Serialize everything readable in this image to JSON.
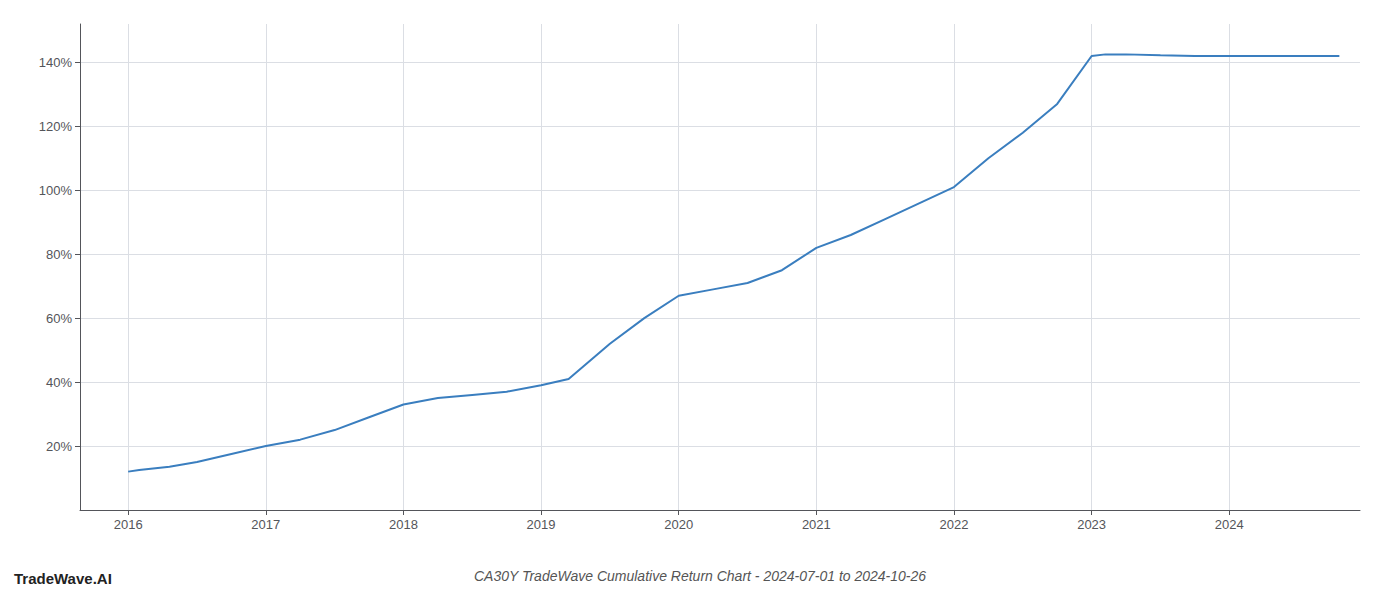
{
  "chart_data": {
    "type": "line",
    "title": "CA30Y TradeWave Cumulative Return Chart - 2024-07-01 to 2024-10-26",
    "annotations": [
      "TradeWave.AI"
    ],
    "x": [
      2016.0,
      2016.08,
      2016.3,
      2016.5,
      2016.75,
      2017.0,
      2017.25,
      2017.5,
      2017.75,
      2018.0,
      2018.25,
      2018.5,
      2018.75,
      2019.0,
      2019.2,
      2019.5,
      2019.75,
      2020.0,
      2020.25,
      2020.5,
      2020.75,
      2021.0,
      2021.25,
      2021.5,
      2021.75,
      2022.0,
      2022.25,
      2022.5,
      2022.75,
      2023.0,
      2023.1,
      2023.25,
      2023.5,
      2023.75,
      2024.0,
      2024.3,
      2024.8
    ],
    "values": [
      12,
      12.5,
      13.5,
      15,
      17.5,
      20,
      22,
      25,
      29,
      33,
      35,
      36,
      37,
      39,
      41,
      52,
      60,
      67,
      69,
      71,
      75,
      82,
      86,
      91,
      96,
      101,
      110,
      118,
      127,
      142,
      142.5,
      142.5,
      142.2,
      142.0,
      142.0,
      142.0,
      142.0
    ],
    "color": "#3a7ebf",
    "xlim": [
      2015.65,
      2024.95
    ],
    "ylim": [
      0,
      152
    ],
    "xticks": [
      2016,
      2017,
      2018,
      2019,
      2020,
      2021,
      2022,
      2023,
      2024
    ],
    "yticks": [
      {
        "value": 20,
        "label": "20%"
      },
      {
        "value": 40,
        "label": "40%"
      },
      {
        "value": 60,
        "label": "60%"
      },
      {
        "value": 80,
        "label": "80%"
      },
      {
        "value": 100,
        "label": "100%"
      },
      {
        "value": 120,
        "label": "120%"
      },
      {
        "value": 140,
        "label": "140%"
      }
    ],
    "grid": true
  }
}
